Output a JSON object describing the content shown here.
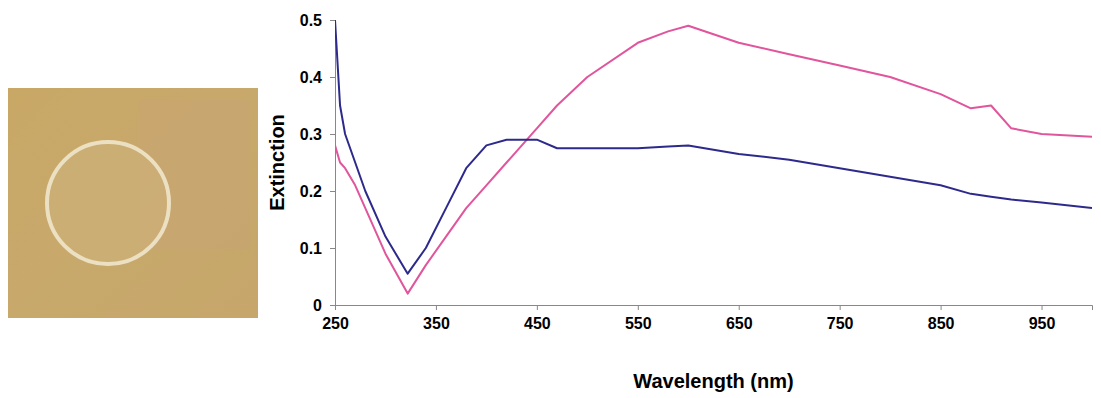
{
  "chart_data": {
    "type": "line",
    "x_label": "Wavelength (nm)",
    "y_label": "Extinction",
    "x": [
      250,
      255,
      260,
      270,
      280,
      300,
      322,
      340,
      360,
      380,
      400,
      420,
      450,
      470,
      500,
      550,
      580,
      600,
      650,
      700,
      750,
      800,
      850,
      880,
      900,
      920,
      950,
      1000
    ],
    "series": [
      {
        "color": "#e0559b",
        "values": [
          0.28,
          0.25,
          0.24,
          0.21,
          0.17,
          0.09,
          0.02,
          0.07,
          0.12,
          0.17,
          0.21,
          0.25,
          0.31,
          0.35,
          0.4,
          0.46,
          0.48,
          0.49,
          0.46,
          0.44,
          0.42,
          0.4,
          0.37,
          0.345,
          0.35,
          0.31,
          0.3,
          0.295
        ]
      },
      {
        "color": "#2d2a8c",
        "values": [
          0.5,
          0.35,
          0.3,
          0.25,
          0.2,
          0.12,
          0.055,
          0.1,
          0.17,
          0.24,
          0.28,
          0.29,
          0.29,
          0.275,
          0.275,
          0.275,
          0.278,
          0.28,
          0.265,
          0.255,
          0.24,
          0.225,
          0.21,
          0.195,
          0.19,
          0.185,
          0.18,
          0.17
        ]
      }
    ],
    "xlim": [
      250,
      1000
    ],
    "xticks": [
      250,
      350,
      450,
      550,
      650,
      750,
      850,
      950
    ],
    "ylim": [
      0,
      0.5
    ],
    "yticks": [
      0,
      0.1,
      0.2,
      0.3,
      0.4,
      0.5
    ],
    "grid": false
  }
}
